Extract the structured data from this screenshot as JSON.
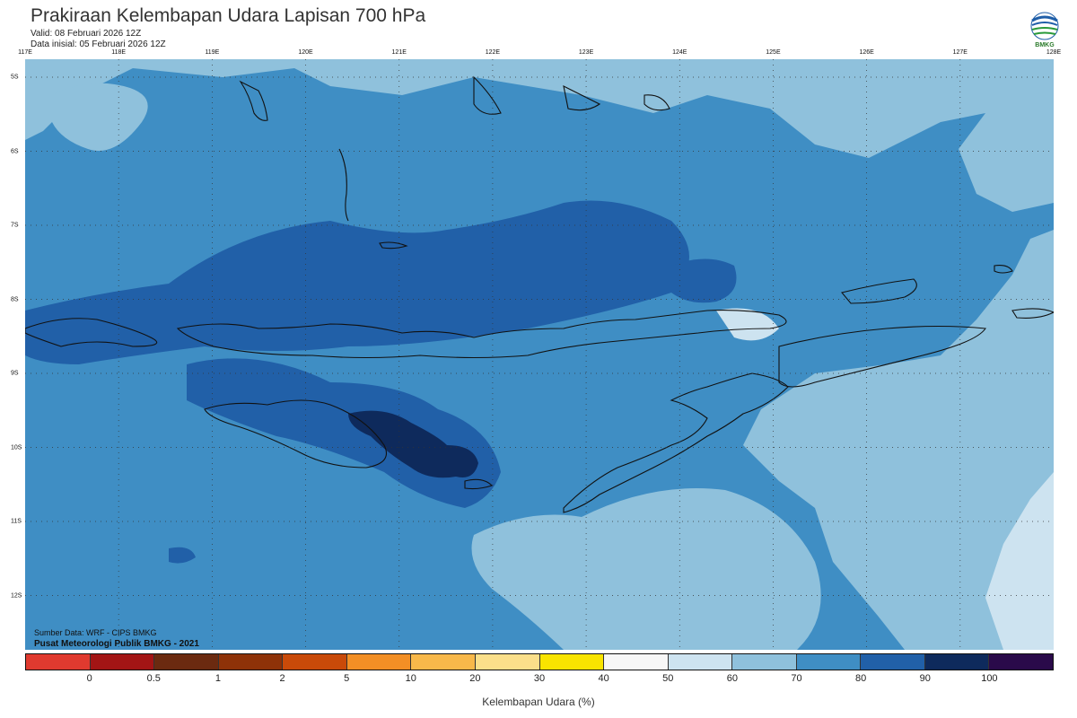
{
  "header": {
    "title": "Prakiraan Kelembapan Udara Lapisan 700 hPa",
    "valid": "Valid: 08 Februari 2026 12Z",
    "initial": "Data inisial: 05 Februari 2026 12Z",
    "logo_text": "BMKG"
  },
  "axes": {
    "lon_labels": [
      "117E",
      "118E",
      "119E",
      "120E",
      "121E",
      "122E",
      "123E",
      "124E",
      "125E",
      "126E",
      "127E",
      "128E"
    ],
    "lat_labels": [
      "5S",
      "6S",
      "7S",
      "8S",
      "9S",
      "10S",
      "11S",
      "12S"
    ]
  },
  "footer": {
    "source": "Sumber Data: WRF - CIPS BMKG",
    "center": "Pusat Meteorologi Publik BMKG - 2021"
  },
  "legend": {
    "title": "Kelembapan Udara (%)",
    "ticks": [
      "0",
      "0.5",
      "1",
      "2",
      "5",
      "10",
      "20",
      "30",
      "40",
      "50",
      "60",
      "70",
      "80",
      "90",
      "100"
    ],
    "colors": [
      "#e03a2f",
      "#a31515",
      "#6b2a10",
      "#8e3208",
      "#c94a09",
      "#f38f25",
      "#f8b84a",
      "#fbdf8a",
      "#f9e400",
      "#f7f7f7",
      "#cde3f0",
      "#8fc1dc",
      "#3f8ec4",
      "#2160a8",
      "#0e2a5c",
      "#2a0a4a"
    ]
  },
  "colors": {
    "rh_40_50": "#f7f7f7",
    "rh_50_60": "#cde3f0",
    "rh_60_70": "#8fc1dc",
    "rh_70_80": "#3f8ec4",
    "rh_80_90": "#2160a8",
    "rh_90_100": "#0e2a5c"
  }
}
